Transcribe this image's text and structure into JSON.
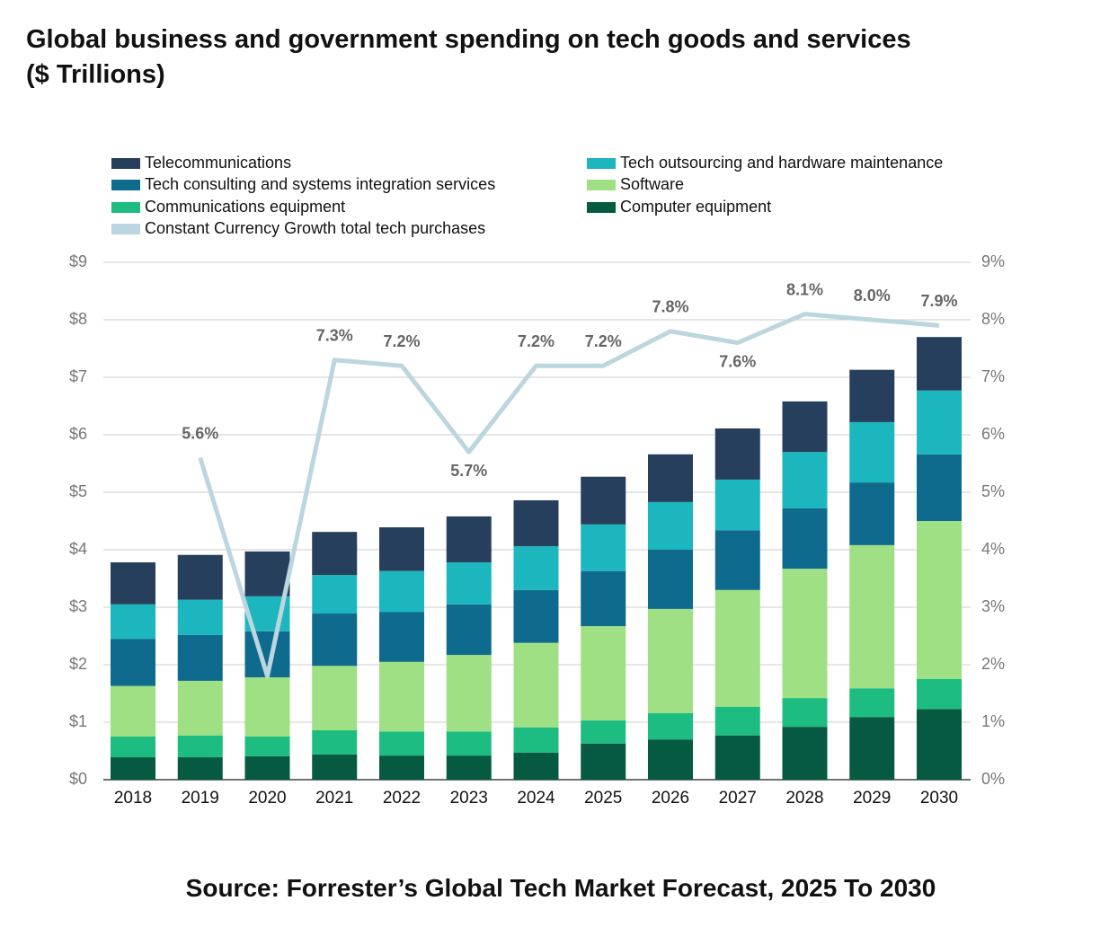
{
  "chart_data": {
    "type": "stacked_bar_line",
    "title": "Global business and government spending on tech goods and services",
    "subtitle": "($ Trillions)",
    "source": "Source: Forrester’s Global Tech Market Forecast, 2025 To 2030",
    "categories": [
      "2018",
      "2019",
      "2020",
      "2021",
      "2022",
      "2023",
      "2024",
      "2025",
      "2026",
      "2027",
      "2028",
      "2029",
      "2030"
    ],
    "series": [
      {
        "name": "Telecommunications",
        "color": "#253f5c",
        "values": [
          0.73,
          0.78,
          0.78,
          0.75,
          0.76,
          0.8,
          0.8,
          0.83,
          0.83,
          0.89,
          0.88,
          0.91,
          0.93
        ]
      },
      {
        "name": "Tech outsourcing and hardware maintenance",
        "color": "#1cb6be",
        "values": [
          0.6,
          0.61,
          0.61,
          0.67,
          0.71,
          0.73,
          0.76,
          0.81,
          0.83,
          0.88,
          0.98,
          1.05,
          1.11
        ]
      },
      {
        "name": "Tech consulting and systems integration services",
        "color": "#0e6b8e",
        "values": [
          0.82,
          0.8,
          0.8,
          0.91,
          0.87,
          0.88,
          0.92,
          0.96,
          1.03,
          1.04,
          1.05,
          1.09,
          1.16
        ]
      },
      {
        "name": "Software",
        "color": "#9fe084",
        "values": [
          0.88,
          0.95,
          1.03,
          1.12,
          1.21,
          1.33,
          1.47,
          1.64,
          1.81,
          2.03,
          2.25,
          2.49,
          2.75
        ]
      },
      {
        "name": "Communications equipment",
        "color": "#1dbc80",
        "values": [
          0.36,
          0.38,
          0.34,
          0.42,
          0.42,
          0.42,
          0.44,
          0.4,
          0.46,
          0.5,
          0.5,
          0.5,
          0.52
        ]
      },
      {
        "name": "Computer equipment",
        "color": "#075a42",
        "values": [
          0.39,
          0.39,
          0.41,
          0.44,
          0.42,
          0.42,
          0.47,
          0.63,
          0.7,
          0.77,
          0.92,
          1.09,
          1.23
        ]
      },
      {
        "name": "Constant Currency Growth total tech purchases",
        "color": "#bcd6df",
        "axis": "y2",
        "values": [
          null,
          5.6,
          1.8,
          7.3,
          7.2,
          5.7,
          7.2,
          7.2,
          7.8,
          7.6,
          8.1,
          8.0,
          7.9
        ],
        "value_labels": [
          null,
          "5.6%",
          null,
          "7.3%",
          "7.2%",
          "5.7%",
          "7.2%",
          "7.2%",
          "7.8%",
          "7.6%",
          "8.1%",
          "8.0%",
          "7.9%"
        ]
      }
    ],
    "ylim": [
      0,
      9
    ],
    "yticks": [
      {
        "value": 0,
        "label": "$0"
      },
      {
        "value": 1,
        "label": "$1"
      },
      {
        "value": 2,
        "label": "$2"
      },
      {
        "value": 3,
        "label": "$3"
      },
      {
        "value": 4,
        "label": "$4"
      },
      {
        "value": 5,
        "label": "$5"
      },
      {
        "value": 6,
        "label": "$6"
      },
      {
        "value": 7,
        "label": "$7"
      },
      {
        "value": 8,
        "label": "$8"
      },
      {
        "value": 9,
        "label": "$9"
      }
    ],
    "y2lim": [
      0,
      9
    ],
    "y2ticks": [
      {
        "value": 0,
        "label": "0%"
      },
      {
        "value": 1,
        "label": "1%"
      },
      {
        "value": 2,
        "label": "2%"
      },
      {
        "value": 3,
        "label": "3%"
      },
      {
        "value": 4,
        "label": "4%"
      },
      {
        "value": 5,
        "label": "5%"
      },
      {
        "value": 6,
        "label": "6%"
      },
      {
        "value": 7,
        "label": "7%"
      },
      {
        "value": 8,
        "label": "8%"
      },
      {
        "value": 9,
        "label": "9%"
      }
    ],
    "grid": true
  }
}
